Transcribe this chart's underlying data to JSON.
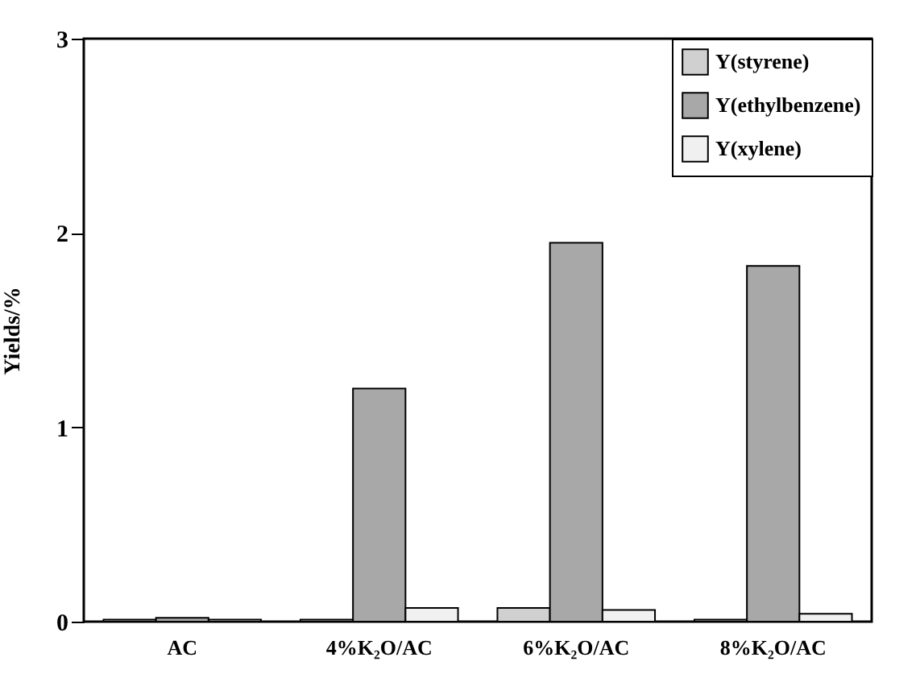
{
  "chart_data": {
    "type": "bar",
    "ylabel": "Yields/%",
    "categories": [
      "AC",
      "4%K₂O/AC",
      "6%K₂O/AC",
      "8%K₂O/AC"
    ],
    "series": [
      {
        "name": "Y(styrene)",
        "color": "#d0d0d0",
        "values": [
          0.01,
          0.01,
          0.07,
          0.01
        ]
      },
      {
        "name": "Y(ethylbenzene)",
        "color": "#a8a8a8",
        "values": [
          0.02,
          1.2,
          1.95,
          1.83
        ]
      },
      {
        "name": "Y(xylene)",
        "color": "#f0f0f0",
        "values": [
          0.01,
          0.07,
          0.06,
          0.04
        ]
      }
    ],
    "ylim": [
      0,
      3
    ],
    "yticks": [
      0,
      1,
      2,
      3
    ],
    "grid": false,
    "legend": "top right"
  }
}
